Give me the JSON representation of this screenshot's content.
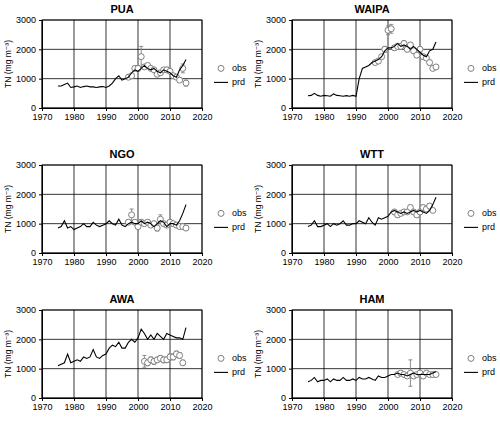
{
  "chart_data": [
    {
      "type": "line",
      "title": "PUA",
      "ylabel": "TN (mg m⁻³)",
      "xlim": [
        1970,
        2020
      ],
      "xticks": [
        1970,
        1980,
        1990,
        2000,
        2010,
        2020
      ],
      "ylim": [
        0,
        3000
      ],
      "yticks": [
        0,
        1000,
        2000,
        3000
      ],
      "grid": true,
      "legend": "right",
      "series": [
        {
          "name": "obs",
          "type": "scatter",
          "marker": "circle",
          "color": "#808080",
          "x": [
            1997,
            1998,
            1999,
            2000,
            2001,
            2002,
            2003,
            2004,
            2005,
            2006,
            2007,
            2008,
            2009,
            2010,
            2011,
            2012,
            2013,
            2014,
            2015
          ],
          "values": [
            1050,
            1100,
            1350,
            1350,
            1750,
            1400,
            1450,
            1350,
            1300,
            1150,
            1200,
            1300,
            1300,
            1250,
            1100,
            1050,
            950,
            1350,
            850
          ],
          "errors": [
            60,
            60,
            80,
            90,
            350,
            80,
            70,
            60,
            60,
            80,
            70,
            80,
            90,
            70,
            60,
            70,
            80,
            150,
            100
          ]
        },
        {
          "name": "prd",
          "type": "line",
          "line_style": "solid",
          "color": "#000000",
          "x": [
            1975,
            1976,
            1977,
            1978,
            1979,
            1980,
            1981,
            1982,
            1983,
            1984,
            1985,
            1986,
            1987,
            1988,
            1989,
            1990,
            1991,
            1992,
            1993,
            1994,
            1995,
            1996,
            1997,
            1998,
            1999,
            2000,
            2001,
            2002,
            2003,
            2004,
            2005,
            2006,
            2007,
            2008,
            2009,
            2010,
            2011,
            2012,
            2013,
            2014,
            2015
          ],
          "values": [
            750,
            750,
            800,
            850,
            700,
            720,
            750,
            700,
            730,
            750,
            720,
            720,
            700,
            720,
            730,
            700,
            750,
            850,
            1000,
            1100,
            950,
            1000,
            1050,
            1200,
            1300,
            1250,
            1350,
            1450,
            1350,
            1300,
            1350,
            1250,
            1200,
            1300,
            1250,
            1200,
            1100,
            1050,
            1300,
            1450,
            1650
          ]
        }
      ]
    },
    {
      "type": "line",
      "title": "WAIPA",
      "ylabel": "TN (mg m⁻³)",
      "xlim": [
        1970,
        2020
      ],
      "xticks": [
        1970,
        1980,
        1990,
        2000,
        2010,
        2020
      ],
      "ylim": [
        0,
        3000
      ],
      "yticks": [
        0,
        1000,
        2000,
        3000
      ],
      "grid": true,
      "legend": "right",
      "series": [
        {
          "name": "obs",
          "type": "scatter",
          "marker": "circle",
          "color": "#808080",
          "x": [
            1996,
            1997,
            1998,
            1999,
            2000,
            2001,
            2002,
            2003,
            2004,
            2005,
            2006,
            2007,
            2008,
            2009,
            2010,
            2011,
            2012,
            2013,
            2014,
            2015
          ],
          "values": [
            1550,
            1600,
            1750,
            2000,
            2650,
            2700,
            2050,
            2100,
            2100,
            2200,
            2000,
            2150,
            1950,
            1800,
            2000,
            1750,
            1700,
            1550,
            1350,
            1400
          ],
          "errors": [
            60,
            70,
            70,
            100,
            150,
            150,
            80,
            80,
            70,
            90,
            80,
            80,
            90,
            80,
            90,
            80,
            80,
            80,
            60,
            60
          ]
        },
        {
          "name": "prd",
          "type": "line",
          "line_style": "solid",
          "color": "#000000",
          "x": [
            1975,
            1976,
            1977,
            1978,
            1979,
            1980,
            1981,
            1982,
            1983,
            1984,
            1985,
            1986,
            1987,
            1988,
            1989,
            1990,
            1991,
            1992,
            1993,
            1994,
            1995,
            1996,
            1997,
            1998,
            1999,
            2000,
            2001,
            2002,
            2003,
            2004,
            2005,
            2006,
            2007,
            2008,
            2009,
            2010,
            2011,
            2012,
            2013,
            2014,
            2015
          ],
          "values": [
            420,
            430,
            500,
            430,
            400,
            430,
            420,
            400,
            480,
            430,
            420,
            400,
            420,
            400,
            430,
            400,
            1000,
            1350,
            1400,
            1450,
            1550,
            1600,
            1650,
            1750,
            1950,
            2050,
            2050,
            2100,
            2200,
            2100,
            2150,
            2100,
            2000,
            2100,
            2000,
            1900,
            1800,
            1750,
            1950,
            2000,
            2250
          ]
        }
      ]
    },
    {
      "type": "line",
      "title": "NGO",
      "ylabel": "TN (mg m⁻³)",
      "xlim": [
        1970,
        2020
      ],
      "xticks": [
        1970,
        1980,
        1990,
        2000,
        2010,
        2020
      ],
      "ylim": [
        0,
        3000
      ],
      "yticks": [
        0,
        1000,
        2000,
        3000
      ],
      "grid": true,
      "legend": "right",
      "series": [
        {
          "name": "obs",
          "type": "scatter",
          "marker": "circle",
          "color": "#808080",
          "x": [
            1997,
            1998,
            1999,
            2000,
            2001,
            2002,
            2003,
            2004,
            2005,
            2006,
            2007,
            2008,
            2009,
            2010,
            2011,
            2012,
            2013,
            2014,
            2015
          ],
          "values": [
            1050,
            1300,
            1050,
            900,
            1050,
            1000,
            1050,
            950,
            1000,
            850,
            1150,
            1000,
            950,
            1050,
            1000,
            950,
            900,
            900,
            850
          ],
          "errors": [
            80,
            200,
            80,
            70,
            80,
            70,
            80,
            70,
            70,
            100,
            150,
            80,
            70,
            80,
            70,
            70,
            60,
            60,
            60
          ]
        },
        {
          "name": "prd",
          "type": "line",
          "line_style": "solid",
          "color": "#000000",
          "x": [
            1975,
            1976,
            1977,
            1978,
            1979,
            1980,
            1981,
            1982,
            1983,
            1984,
            1985,
            1986,
            1987,
            1988,
            1989,
            1990,
            1991,
            1992,
            1993,
            1994,
            1995,
            1996,
            1997,
            1998,
            1999,
            2000,
            2001,
            2002,
            2003,
            2004,
            2005,
            2006,
            2007,
            2008,
            2009,
            2010,
            2011,
            2012,
            2013,
            2014,
            2015
          ],
          "values": [
            850,
            900,
            1100,
            850,
            900,
            800,
            850,
            900,
            1000,
            900,
            900,
            1050,
            950,
            900,
            950,
            1000,
            1100,
            1000,
            950,
            1150,
            950,
            900,
            1000,
            1050,
            1000,
            1000,
            1100,
            1000,
            1050,
            1000,
            900,
            1000,
            1100,
            1050,
            900,
            1000,
            1000,
            950,
            1100,
            1350,
            1650
          ]
        }
      ]
    },
    {
      "type": "line",
      "title": "WTT",
      "ylabel": "TN (mg m⁻³)",
      "xlim": [
        1970,
        2020
      ],
      "xticks": [
        1970,
        1980,
        1990,
        2000,
        2010,
        2020
      ],
      "ylim": [
        0,
        3000
      ],
      "yticks": [
        0,
        1000,
        2000,
        3000
      ],
      "grid": true,
      "legend": "right",
      "series": [
        {
          "name": "obs",
          "type": "scatter",
          "marker": "circle",
          "color": "#808080",
          "x": [
            2002,
            2003,
            2004,
            2005,
            2006,
            2007,
            2008,
            2009,
            2010,
            2011,
            2012,
            2013,
            2014
          ],
          "values": [
            1400,
            1300,
            1350,
            1400,
            1400,
            1550,
            1400,
            1300,
            1400,
            1550,
            1500,
            1600,
            1450
          ],
          "errors": [
            80,
            80,
            70,
            80,
            70,
            80,
            80,
            70,
            80,
            80,
            80,
            80,
            70
          ]
        },
        {
          "name": "prd",
          "type": "line",
          "line_style": "solid",
          "color": "#000000",
          "x": [
            1975,
            1976,
            1977,
            1978,
            1979,
            1980,
            1981,
            1982,
            1983,
            1984,
            1985,
            1986,
            1987,
            1988,
            1989,
            1990,
            1991,
            1992,
            1993,
            1994,
            1995,
            1996,
            1997,
            1998,
            1999,
            2000,
            2001,
            2002,
            2003,
            2004,
            2005,
            2006,
            2007,
            2008,
            2009,
            2010,
            2011,
            2012,
            2013,
            2014,
            2015
          ],
          "values": [
            900,
            950,
            1100,
            900,
            900,
            950,
            1000,
            900,
            1000,
            950,
            1000,
            1100,
            950,
            950,
            1000,
            1000,
            1100,
            1050,
            1000,
            1200,
            1050,
            950,
            1200,
            1150,
            1200,
            1250,
            1400,
            1450,
            1400,
            1350,
            1400,
            1350,
            1400,
            1450,
            1400,
            1450,
            1400,
            1350,
            1450,
            1650,
            1900
          ]
        }
      ]
    },
    {
      "type": "line",
      "title": "AWA",
      "ylabel": "TN (mg m⁻³)",
      "xlim": [
        1970,
        2020
      ],
      "xticks": [
        1970,
        1980,
        1990,
        2000,
        2010,
        2020
      ],
      "ylim": [
        0,
        3000
      ],
      "yticks": [
        0,
        1000,
        2000,
        3000
      ],
      "grid": true,
      "legend": "right",
      "series": [
        {
          "name": "obs",
          "type": "scatter",
          "marker": "circle",
          "color": "#808080",
          "x": [
            2002,
            2003,
            2004,
            2005,
            2006,
            2007,
            2008,
            2009,
            2010,
            2011,
            2012,
            2013,
            2014
          ],
          "values": [
            1250,
            1200,
            1300,
            1250,
            1300,
            1350,
            1300,
            1300,
            1400,
            1400,
            1500,
            1450,
            1200
          ],
          "errors": [
            200,
            100,
            100,
            100,
            90,
            100,
            100,
            90,
            100,
            100,
            100,
            100,
            90
          ]
        },
        {
          "name": "prd",
          "type": "line",
          "line_style": "solid",
          "color": "#000000",
          "x": [
            1975,
            1976,
            1977,
            1978,
            1979,
            1980,
            1981,
            1982,
            1983,
            1984,
            1985,
            1986,
            1987,
            1988,
            1989,
            1990,
            1991,
            1992,
            1993,
            1994,
            1995,
            1996,
            1997,
            1998,
            1999,
            2000,
            2001,
            2002,
            2003,
            2004,
            2005,
            2006,
            2007,
            2008,
            2009,
            2010,
            2011,
            2012,
            2013,
            2014,
            2015
          ],
          "values": [
            1100,
            1150,
            1200,
            1500,
            1200,
            1250,
            1300,
            1250,
            1400,
            1350,
            1400,
            1650,
            1400,
            1350,
            1450,
            1500,
            1700,
            1800,
            1750,
            1900,
            1700,
            1700,
            1900,
            2000,
            1900,
            2050,
            2350,
            2200,
            2000,
            2150,
            2000,
            2200,
            2100,
            2000,
            2200,
            2150,
            2100,
            2050,
            2050,
            2000,
            2400
          ]
        }
      ]
    },
    {
      "type": "line",
      "title": "HAM",
      "ylabel": "TN (mg m⁻³)",
      "xlim": [
        1970,
        2020
      ],
      "xticks": [
        1970,
        1980,
        1990,
        2000,
        2010,
        2020
      ],
      "ylim": [
        0,
        3000
      ],
      "yticks": [
        0,
        1000,
        2000,
        3000
      ],
      "grid": true,
      "legend": "right",
      "series": [
        {
          "name": "obs",
          "type": "scatter",
          "marker": "circle",
          "color": "#808080",
          "x": [
            2003,
            2004,
            2005,
            2006,
            2007,
            2008,
            2009,
            2010,
            2011,
            2012,
            2013,
            2014,
            2015
          ],
          "values": [
            800,
            850,
            800,
            750,
            850,
            750,
            800,
            850,
            750,
            850,
            800,
            800,
            800
          ],
          "errors": [
            70,
            70,
            60,
            60,
            450,
            60,
            60,
            70,
            60,
            70,
            60,
            60,
            60
          ]
        },
        {
          "name": "prd",
          "type": "line",
          "line_style": "solid",
          "color": "#000000",
          "x": [
            1975,
            1976,
            1977,
            1978,
            1979,
            1980,
            1981,
            1982,
            1983,
            1984,
            1985,
            1986,
            1987,
            1988,
            1989,
            1990,
            1991,
            1992,
            1993,
            1994,
            1995,
            1996,
            1997,
            1998,
            1999,
            2000,
            2001,
            2002,
            2003,
            2004,
            2005,
            2006,
            2007,
            2008,
            2009,
            2010,
            2011,
            2012,
            2013,
            2014,
            2015
          ],
          "values": [
            550,
            600,
            700,
            550,
            600,
            600,
            650,
            550,
            650,
            600,
            600,
            700,
            600,
            600,
            650,
            600,
            700,
            650,
            650,
            700,
            650,
            600,
            750,
            700,
            700,
            750,
            800,
            800,
            850,
            800,
            800,
            750,
            800,
            850,
            800,
            800,
            800,
            800,
            800,
            850,
            900
          ]
        }
      ]
    }
  ]
}
